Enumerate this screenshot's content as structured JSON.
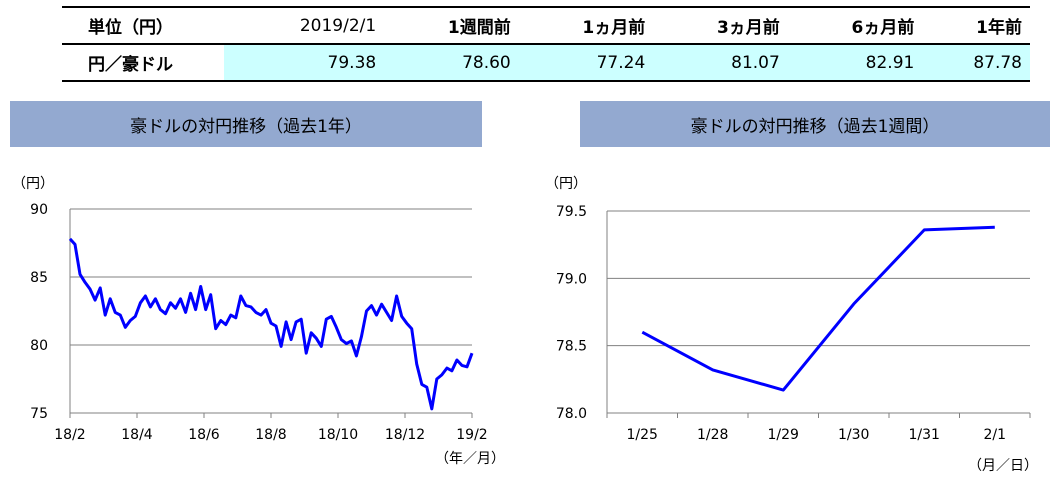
{
  "table": {
    "headers": [
      "単位（円）",
      "2019/2/1",
      "1週間前",
      "1ヵ月前",
      "3ヵ月前",
      "6ヵ月前",
      "1年前"
    ],
    "row_label": "円／豪ドル",
    "values": [
      "79.38",
      "78.60",
      "77.24",
      "81.07",
      "82.91",
      "87.78"
    ]
  },
  "chart_data": [
    {
      "type": "line",
      "title": "豪ドルの対円推移（過去1年）",
      "ylabel": "（円）",
      "xlabel": "（年／月）",
      "ylim": [
        75,
        90
      ],
      "yticks": [
        "75",
        "80",
        "85",
        "90"
      ],
      "xticks": [
        "18/2",
        "18/4",
        "18/6",
        "18/8",
        "18/10",
        "18/12",
        "19/2"
      ],
      "grid": true,
      "color": "#0000ff",
      "series": [
        {
          "x": [
            0,
            0.15,
            0.3,
            0.45,
            0.6,
            0.75,
            0.9,
            1.05,
            1.2,
            1.35,
            1.5,
            1.65,
            1.8,
            1.95,
            2.1,
            2.25,
            2.4,
            2.55,
            2.7,
            2.85,
            3.0,
            3.15,
            3.3,
            3.45,
            3.6,
            3.75,
            3.9,
            4.05,
            4.2,
            4.35,
            4.5,
            4.65,
            4.8,
            4.95,
            5.1,
            5.25,
            5.4,
            5.55,
            5.7,
            5.85,
            6.0,
            6.15,
            6.3,
            6.45,
            6.6,
            6.75,
            6.9,
            7.05,
            7.2,
            7.35,
            7.5,
            7.65,
            7.8,
            7.95,
            8.1,
            8.25,
            8.4,
            8.55,
            8.7,
            8.85,
            9.0,
            9.15,
            9.3,
            9.45,
            9.6,
            9.75,
            9.9,
            10.05,
            10.2,
            10.35,
            10.5,
            10.65,
            10.8,
            10.95,
            11.1,
            11.25,
            11.4,
            11.55,
            11.7,
            11.85,
            12.0
          ],
          "values": [
            87.8,
            87.4,
            85.2,
            84.6,
            84.1,
            83.3,
            84.2,
            82.2,
            83.4,
            82.4,
            82.2,
            81.3,
            81.8,
            82.1,
            83.1,
            83.6,
            82.8,
            83.4,
            82.6,
            82.3,
            83.1,
            82.7,
            83.4,
            82.4,
            83.8,
            82.6,
            84.3,
            82.6,
            83.7,
            81.2,
            81.8,
            81.5,
            82.2,
            82.0,
            83.6,
            82.9,
            82.8,
            82.4,
            82.2,
            82.6,
            81.6,
            81.4,
            79.9,
            81.7,
            80.4,
            81.7,
            81.9,
            79.4,
            80.9,
            80.5,
            79.9,
            81.9,
            82.1,
            81.3,
            80.4,
            80.1,
            80.3,
            79.2,
            80.6,
            82.5,
            82.9,
            82.2,
            83.0,
            82.4,
            81.8,
            83.6,
            82.1,
            81.6,
            81.2,
            78.6,
            77.1,
            76.9,
            75.3,
            77.5,
            77.8,
            78.3,
            78.1,
            78.9,
            78.5,
            78.4,
            79.4
          ]
        }
      ]
    },
    {
      "type": "line",
      "title": "豪ドルの対円推移（過去1週間）",
      "ylabel": "（円）",
      "xlabel": "（月／日）",
      "ylim": [
        78.0,
        79.5
      ],
      "yticks": [
        "78.0",
        "78.5",
        "79.0",
        "79.5"
      ],
      "categories": [
        "1/25",
        "1/28",
        "1/29",
        "1/30",
        "1/31",
        "2/1"
      ],
      "grid": true,
      "color": "#0000ff",
      "series": [
        {
          "values": [
            78.6,
            78.32,
            78.17,
            78.81,
            79.36,
            79.38
          ]
        }
      ]
    }
  ]
}
